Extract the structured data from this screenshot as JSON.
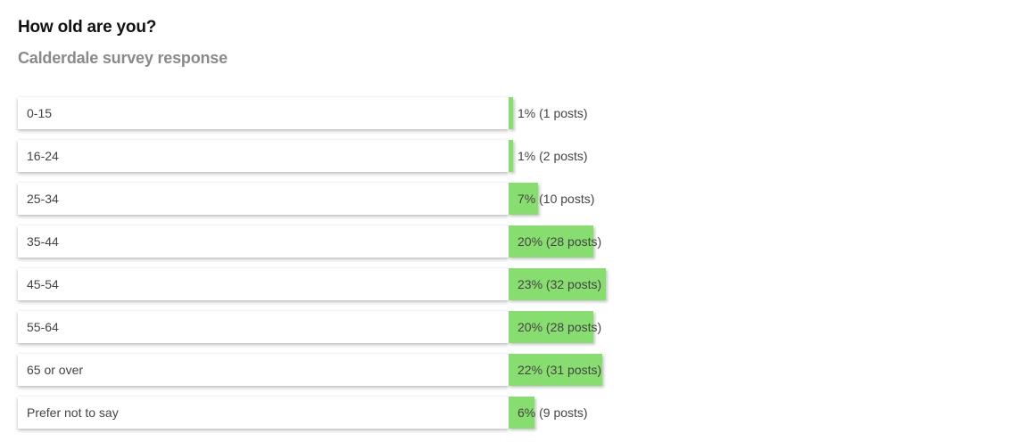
{
  "header": {
    "title": "How old are you?",
    "subtitle": "Calderdale survey response"
  },
  "colors": {
    "bar": "#88dd70",
    "label_box": "#ffffff",
    "text": "#444444"
  },
  "chart_data": {
    "type": "bar",
    "orientation": "horizontal",
    "title": "How old are you?",
    "subtitle": "Calderdale survey response",
    "categories": [
      "0-15",
      "16-24",
      "25-34",
      "35-44",
      "45-54",
      "55-64",
      "65 or over",
      "Prefer not to say"
    ],
    "values": [
      1,
      1,
      7,
      20,
      23,
      20,
      22,
      6
    ],
    "posts": [
      1,
      2,
      10,
      28,
      32,
      28,
      31,
      9
    ],
    "value_labels": [
      "1% (1 posts)",
      "1% (2 posts)",
      "7% (10 posts)",
      "20% (28 posts)",
      "23% (32 posts)",
      "20% (28 posts)",
      "22% (31 posts)",
      "6% (9 posts)"
    ],
    "unit": "%",
    "legend": "none",
    "grid": false
  }
}
